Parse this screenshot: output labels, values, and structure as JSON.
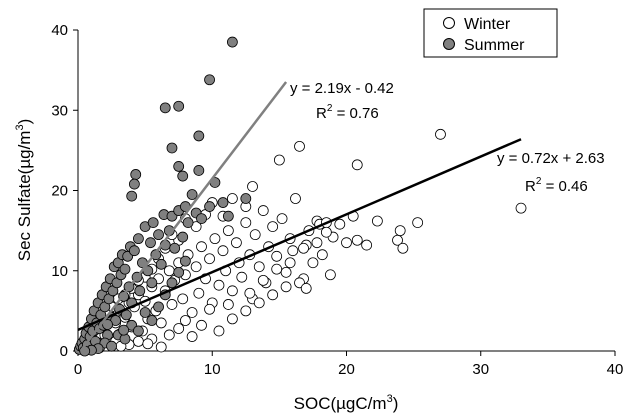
{
  "chart_data": {
    "type": "scatter",
    "xlabel": "SOC(µgC/m",
    "xlabel_sup": "3",
    "xlabel_tail": ")",
    "ylabel": "Sec Sulfate(µg/m",
    "ylabel_sup": "3",
    "ylabel_tail": ")",
    "xlim": [
      0,
      40
    ],
    "ylim": [
      0,
      40
    ],
    "x_ticks": [
      "0",
      "10",
      "20",
      "30",
      "40"
    ],
    "y_ticks": [
      "0",
      "10",
      "20",
      "30",
      "40"
    ],
    "grid": false,
    "legend_position": "top-right",
    "series": [
      {
        "name": "Winter",
        "marker": "open-circle",
        "color": "#000000",
        "fill": "#ffffff",
        "points": [
          [
            0.2,
            0.3
          ],
          [
            0.4,
            0.8
          ],
          [
            0.6,
            1.2
          ],
          [
            0.8,
            0.5
          ],
          [
            1.0,
            1.8
          ],
          [
            1.2,
            2.5
          ],
          [
            1.5,
            1.0
          ],
          [
            1.8,
            3.2
          ],
          [
            2.0,
            2.0
          ],
          [
            2.2,
            4.0
          ],
          [
            2.5,
            1.5
          ],
          [
            2.8,
            3.5
          ],
          [
            3.0,
            5.0
          ],
          [
            3.2,
            2.2
          ],
          [
            3.5,
            4.2
          ],
          [
            3.8,
            6.0
          ],
          [
            4.0,
            3.0
          ],
          [
            4.2,
            5.5
          ],
          [
            4.5,
            7.0
          ],
          [
            4.8,
            2.5
          ],
          [
            5.0,
            6.2
          ],
          [
            5.2,
            4.0
          ],
          [
            5.5,
            8.0
          ],
          [
            5.8,
            5.0
          ],
          [
            6.0,
            9.0
          ],
          [
            6.2,
            3.5
          ],
          [
            6.5,
            7.5
          ],
          [
            6.8,
            10.0
          ],
          [
            7.0,
            5.8
          ],
          [
            7.2,
            8.8
          ],
          [
            7.5,
            11.0
          ],
          [
            7.8,
            6.5
          ],
          [
            8.0,
            9.5
          ],
          [
            8.2,
            12.0
          ],
          [
            8.5,
            4.8
          ],
          [
            8.8,
            10.5
          ],
          [
            9.0,
            7.2
          ],
          [
            9.2,
            13.0
          ],
          [
            9.5,
            9.0
          ],
          [
            9.8,
            11.5
          ],
          [
            10.0,
            6.0
          ],
          [
            10.2,
            14.0
          ],
          [
            10.5,
            8.2
          ],
          [
            10.8,
            12.5
          ],
          [
            11.0,
            10.0
          ],
          [
            11.2,
            15.0
          ],
          [
            11.5,
            7.5
          ],
          [
            11.8,
            13.5
          ],
          [
            12.0,
            11.0
          ],
          [
            12.2,
            9.2
          ],
          [
            12.5,
            16.0
          ],
          [
            12.8,
            12.0
          ],
          [
            13.0,
            6.5
          ],
          [
            13.2,
            14.5
          ],
          [
            13.5,
            10.5
          ],
          [
            13.8,
            17.5
          ],
          [
            14.0,
            8.5
          ],
          [
            14.2,
            13.0
          ],
          [
            14.5,
            15.5
          ],
          [
            14.8,
            11.8
          ],
          [
            15.0,
            23.8
          ],
          [
            15.2,
            16.5
          ],
          [
            15.5,
            9.8
          ],
          [
            15.8,
            14.0
          ],
          [
            16.0,
            12.5
          ],
          [
            16.2,
            19.0
          ],
          [
            16.5,
            25.5
          ],
          [
            16.8,
            9.0
          ],
          [
            17.0,
            13.2
          ],
          [
            17.2,
            15.0
          ],
          [
            17.5,
            11.0
          ],
          [
            17.8,
            16.2
          ],
          [
            18.0,
            15.8
          ],
          [
            18.2,
            12.0
          ],
          [
            18.5,
            16.0
          ],
          [
            18.8,
            9.5
          ],
          [
            19.0,
            14.2
          ],
          [
            20.0,
            13.5
          ],
          [
            20.8,
            13.8
          ],
          [
            20.8,
            23.2
          ],
          [
            21.5,
            13.2
          ],
          [
            22.3,
            16.2
          ],
          [
            23.8,
            13.8
          ],
          [
            24.0,
            15.0
          ],
          [
            24.2,
            12.8
          ],
          [
            25.3,
            16.0
          ],
          [
            27.0,
            27.0
          ],
          [
            33.0,
            17.8
          ],
          [
            16.5,
            8.5
          ],
          [
            17.0,
            7.8
          ],
          [
            13.0,
            20.5
          ],
          [
            12.5,
            18.0
          ],
          [
            11.5,
            19.0
          ],
          [
            10.8,
            16.8
          ],
          [
            10.0,
            18.5
          ],
          [
            9.5,
            17.0
          ],
          [
            8.8,
            15.5
          ],
          [
            8.0,
            16.5
          ],
          [
            7.5,
            13.8
          ],
          [
            7.0,
            14.5
          ],
          [
            6.5,
            12.8
          ],
          [
            6.0,
            11.5
          ],
          [
            5.5,
            10.2
          ],
          [
            5.0,
            9.2
          ],
          [
            4.5,
            8.8
          ],
          [
            4.0,
            7.8
          ],
          [
            3.5,
            7.0
          ],
          [
            3.0,
            6.5
          ],
          [
            2.5,
            5.5
          ],
          [
            2.0,
            4.8
          ],
          [
            6.8,
            2.0
          ],
          [
            7.5,
            2.8
          ],
          [
            8.5,
            1.8
          ],
          [
            9.2,
            3.2
          ],
          [
            10.5,
            2.5
          ],
          [
            11.5,
            4.0
          ],
          [
            12.5,
            5.0
          ],
          [
            13.5,
            6.0
          ],
          [
            14.5,
            7.0
          ],
          [
            15.5,
            8.0
          ],
          [
            5.5,
            1.5
          ],
          [
            4.5,
            1.2
          ],
          [
            3.8,
            0.8
          ],
          [
            6.2,
            0.5
          ],
          [
            5.2,
            0.9
          ],
          [
            8.0,
            3.8
          ],
          [
            9.8,
            5.2
          ],
          [
            11.2,
            5.8
          ],
          [
            12.8,
            7.2
          ],
          [
            13.8,
            8.8
          ],
          [
            14.8,
            10.2
          ],
          [
            15.8,
            11.0
          ],
          [
            16.8,
            12.8
          ],
          [
            17.8,
            13.5
          ],
          [
            18.5,
            14.8
          ],
          [
            19.5,
            15.8
          ],
          [
            20.5,
            16.8
          ],
          [
            2.8,
            1.2
          ],
          [
            3.2,
            0.6
          ],
          [
            1.6,
            0.4
          ]
        ]
      },
      {
        "name": "Summer",
        "marker": "filled-circle",
        "color": "#000000",
        "fill": "#808080",
        "points": [
          [
            0.1,
            0.2
          ],
          [
            0.2,
            0.6
          ],
          [
            0.3,
            1.0
          ],
          [
            0.4,
            0.4
          ],
          [
            0.5,
            1.5
          ],
          [
            0.6,
            2.2
          ],
          [
            0.7,
            0.8
          ],
          [
            0.8,
            3.0
          ],
          [
            0.9,
            1.8
          ],
          [
            1.0,
            4.0
          ],
          [
            1.1,
            2.5
          ],
          [
            1.2,
            5.0
          ],
          [
            1.3,
            1.2
          ],
          [
            1.4,
            3.5
          ],
          [
            1.5,
            6.0
          ],
          [
            1.6,
            2.8
          ],
          [
            1.7,
            4.5
          ],
          [
            1.8,
            7.0
          ],
          [
            1.9,
            3.2
          ],
          [
            2.0,
            5.5
          ],
          [
            2.1,
            8.0
          ],
          [
            2.2,
            2.0
          ],
          [
            2.3,
            6.5
          ],
          [
            2.4,
            9.0
          ],
          [
            2.5,
            4.2
          ],
          [
            2.6,
            7.5
          ],
          [
            2.7,
            10.5
          ],
          [
            2.8,
            3.8
          ],
          [
            2.9,
            8.5
          ],
          [
            3.0,
            11.0
          ],
          [
            3.1,
            5.2
          ],
          [
            3.2,
            9.5
          ],
          [
            3.3,
            12.0
          ],
          [
            3.4,
            6.8
          ],
          [
            3.5,
            10.2
          ],
          [
            3.6,
            4.5
          ],
          [
            3.7,
            11.8
          ],
          [
            3.8,
            8.0
          ],
          [
            3.9,
            13.0
          ],
          [
            4.0,
            6.0
          ],
          [
            4.2,
            12.5
          ],
          [
            4.4,
            9.2
          ],
          [
            4.5,
            14.0
          ],
          [
            4.6,
            7.5
          ],
          [
            4.8,
            11.0
          ],
          [
            5.0,
            15.5
          ],
          [
            5.2,
            10.0
          ],
          [
            5.4,
            13.5
          ],
          [
            5.5,
            8.5
          ],
          [
            5.6,
            16.0
          ],
          [
            5.8,
            12.0
          ],
          [
            6.0,
            14.5
          ],
          [
            6.2,
            10.8
          ],
          [
            6.4,
            17.0
          ],
          [
            6.5,
            13.2
          ],
          [
            6.8,
            15.0
          ],
          [
            7.0,
            16.8
          ],
          [
            7.2,
            12.8
          ],
          [
            7.5,
            17.5
          ],
          [
            7.8,
            14.2
          ],
          [
            8.0,
            18.0
          ],
          [
            8.2,
            16.0
          ],
          [
            8.5,
            19.5
          ],
          [
            8.8,
            17.2
          ],
          [
            9.0,
            22.5
          ],
          [
            9.2,
            16.5
          ],
          [
            9.8,
            18.0
          ],
          [
            10.2,
            21.0
          ],
          [
            10.8,
            18.5
          ],
          [
            11.2,
            16.8
          ],
          [
            11.5,
            38.5
          ],
          [
            9.8,
            33.8
          ],
          [
            6.5,
            30.3
          ],
          [
            7.5,
            30.5
          ],
          [
            9.0,
            26.8
          ],
          [
            7.0,
            25.3
          ],
          [
            7.5,
            23.0
          ],
          [
            7.8,
            21.8
          ],
          [
            4.3,
            22.0
          ],
          [
            4.2,
            20.8
          ],
          [
            4.0,
            19.3
          ],
          [
            12.5,
            19.0
          ],
          [
            3.0,
            2.0
          ],
          [
            3.5,
            1.5
          ],
          [
            4.0,
            3.2
          ],
          [
            4.5,
            2.5
          ],
          [
            5.0,
            4.8
          ],
          [
            5.5,
            3.8
          ],
          [
            2.0,
            1.0
          ],
          [
            2.5,
            0.6
          ],
          [
            1.5,
            0.3
          ],
          [
            1.0,
            0.1
          ],
          [
            0.5,
            0.0
          ],
          [
            6.0,
            5.5
          ],
          [
            6.5,
            7.0
          ],
          [
            7.0,
            8.5
          ],
          [
            7.5,
            9.8
          ],
          [
            8.0,
            11.2
          ],
          [
            2.2,
            3.3
          ],
          [
            3.4,
            2.6
          ]
        ]
      }
    ],
    "trendlines": [
      {
        "series": "Winter",
        "slope": 0.72,
        "intercept": 2.63,
        "x_range": [
          0,
          33
        ],
        "color": "#000000",
        "equation": "y = 0.72x + 2.63",
        "r2_label": "R",
        "r2_sup": "2",
        "r2_value": " = 0.46"
      },
      {
        "series": "Summer",
        "slope": 2.19,
        "intercept": -0.42,
        "x_range": [
          0,
          15.5
        ],
        "color": "#808080",
        "equation": "y = 2.19x - 0.42",
        "r2_label": "R",
        "r2_sup": "2",
        "r2_value": " = 0.76"
      }
    ]
  }
}
